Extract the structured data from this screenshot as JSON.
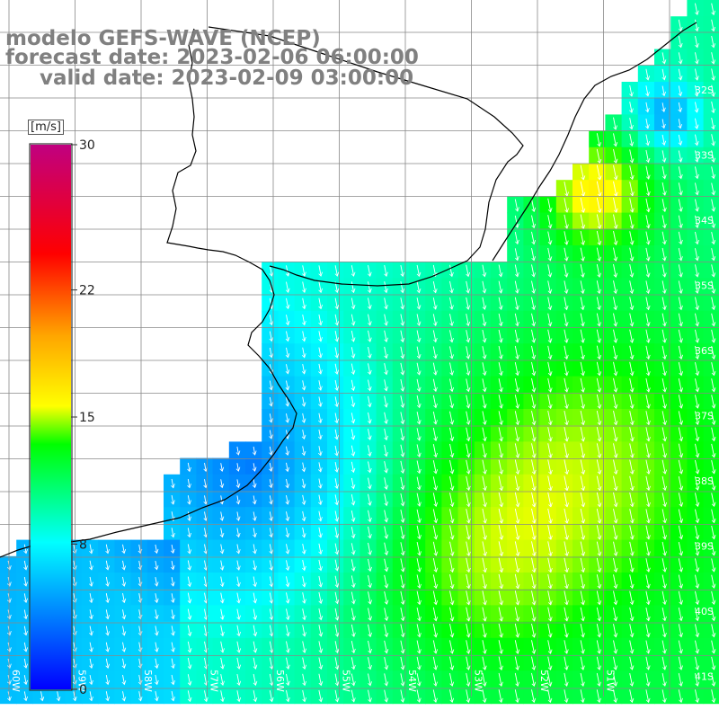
{
  "title": {
    "line1": "modelo GEFS-WAVE (NCEP)",
    "line2": "forecast date: 2023-02-06 06:00:00",
    "line3": "valid date: 2023-02-09 03:00:00"
  },
  "colorbar": {
    "unit": "[m/s]",
    "ticks": [
      "30",
      "22",
      "15",
      "8",
      "0"
    ],
    "tick_values": [
      30,
      22,
      15,
      8,
      0
    ],
    "colors": [
      "#0000ff",
      "#00ffff",
      "#00ff00",
      "#ffff00",
      "#ffa500",
      "#ff0000",
      "#c00080"
    ]
  },
  "map": {
    "lat_labels": [
      "32S",
      "33S",
      "34S",
      "35S",
      "36S",
      "37S",
      "38S",
      "39S",
      "40S",
      "41S"
    ],
    "lon_labels": [
      "60W",
      "59W",
      "58W",
      "57W",
      "56W",
      "55W",
      "54W",
      "53W",
      "52W",
      "51W"
    ],
    "grid": true,
    "land_color": "#ffffff",
    "coast_color": "#000000",
    "arrow_color": "#ffffff"
  }
}
